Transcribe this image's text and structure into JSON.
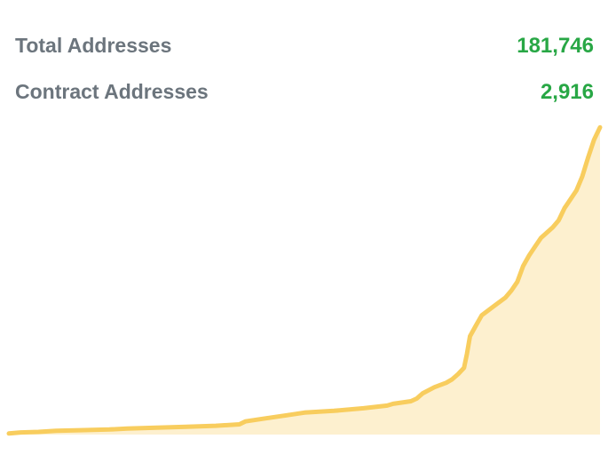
{
  "stats": {
    "total_addresses": {
      "label": "Total Addresses",
      "value": "181,746"
    },
    "contract_addresses": {
      "label": "Contract Addresses",
      "value": "2,916"
    }
  },
  "colors": {
    "label": "#6c757d",
    "value": "#28a745",
    "line": "#f8cd5e",
    "area": "#fdf0cf"
  },
  "chart_data": {
    "type": "area",
    "title": "",
    "xlabel": "",
    "ylabel": "",
    "grid": false,
    "legend": "none",
    "xlim": [
      0,
      100
    ],
    "ylim": [
      0,
      181746
    ],
    "x": [
      0,
      2,
      5,
      8,
      12,
      17,
      20,
      25,
      30,
      35,
      39,
      40,
      43,
      47,
      50,
      55,
      60,
      64,
      65,
      68,
      69,
      70,
      72,
      74,
      75,
      76,
      77,
      77.5,
      78,
      79,
      80,
      82,
      84,
      85,
      86,
      87,
      88,
      89,
      90,
      92,
      93,
      94,
      95,
      96,
      97,
      98,
      99,
      100
    ],
    "series": [
      {
        "values": [
          600,
          1200,
          1500,
          2200,
          2500,
          2900,
          3400,
          3900,
          4400,
          5000,
          5800,
          7500,
          9000,
          11000,
          12500,
          13500,
          15000,
          16500,
          17500,
          19000,
          20500,
          23500,
          27000,
          29500,
          31500,
          34500,
          38000,
          46000,
          56000,
          62000,
          68000,
          73000,
          78000,
          82000,
          87000,
          96000,
          102000,
          107000,
          112000,
          118000,
          122000,
          129000,
          134000,
          139000,
          147000,
          158000,
          168000,
          175000
        ]
      }
    ]
  }
}
